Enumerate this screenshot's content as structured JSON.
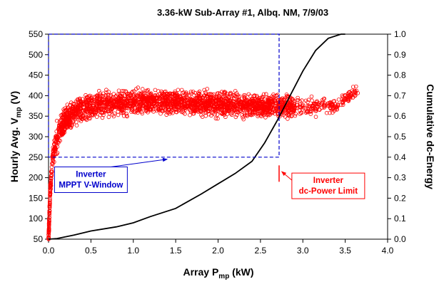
{
  "chart_data": {
    "type": "scatter",
    "title": "3.36-kW  Sub-Array #1, Albq. NM, 7/9/03",
    "xlabel": {
      "main": "Array P",
      "sub": "mp",
      "unit": " (kW)"
    },
    "ylabel": {
      "main": "Hourly Avg. V",
      "sub": "mp",
      "unit": " (V)"
    },
    "y2label": "Cumulative dc-Energy",
    "xlim": [
      0,
      4.0
    ],
    "ylim": [
      50,
      550
    ],
    "y2lim": [
      0,
      1.0
    ],
    "x_ticks": [
      "0.0",
      "0.5",
      "1.0",
      "1.5",
      "2.0",
      "2.5",
      "3.0",
      "3.5",
      "4.0"
    ],
    "y_ticks": [
      "50",
      "100",
      "150",
      "200",
      "250",
      "300",
      "350",
      "400",
      "450",
      "500",
      "550"
    ],
    "y2_ticks": [
      "0.0",
      "0.1",
      "0.2",
      "0.3",
      "0.4",
      "0.5",
      "0.6",
      "0.7",
      "0.8",
      "0.9",
      "1.0"
    ],
    "grid": false,
    "colors": {
      "scatter": "#ff0000",
      "curve": "#000000",
      "window": "#0000cc",
      "limit": "#ff0000"
    },
    "series": [
      {
        "kind": "scatter-band",
        "axis": "left",
        "marker": "open-circle",
        "knee": [
          [
            0.0,
            50
          ],
          [
            0.02,
            170
          ],
          [
            0.05,
            250
          ],
          [
            0.1,
            300
          ],
          [
            0.2,
            340
          ],
          [
            0.35,
            365
          ],
          [
            0.6,
            378
          ],
          [
            1.0,
            385
          ],
          [
            1.5,
            384
          ],
          [
            2.0,
            380
          ],
          [
            2.5,
            375
          ],
          [
            3.0,
            372
          ],
          [
            3.4,
            378
          ],
          [
            3.6,
            408
          ]
        ],
        "spread": [
          [
            0.0,
            8
          ],
          [
            0.1,
            30
          ],
          [
            0.4,
            28
          ],
          [
            1.0,
            26
          ],
          [
            2.0,
            26
          ],
          [
            2.8,
            24
          ],
          [
            3.2,
            18
          ],
          [
            3.6,
            12
          ]
        ]
      },
      {
        "kind": "line",
        "axis": "right",
        "points": [
          [
            0.0,
            0.0
          ],
          [
            0.1,
            0.003
          ],
          [
            0.3,
            0.02
          ],
          [
            0.5,
            0.04
          ],
          [
            0.8,
            0.06
          ],
          [
            1.0,
            0.08
          ],
          [
            1.2,
            0.11
          ],
          [
            1.5,
            0.15
          ],
          [
            1.8,
            0.22
          ],
          [
            2.0,
            0.27
          ],
          [
            2.2,
            0.32
          ],
          [
            2.4,
            0.38
          ],
          [
            2.55,
            0.47
          ],
          [
            2.7,
            0.58
          ],
          [
            2.85,
            0.7
          ],
          [
            3.0,
            0.82
          ],
          [
            3.15,
            0.92
          ],
          [
            3.3,
            0.98
          ],
          [
            3.45,
            1.0
          ],
          [
            3.5,
            1.0
          ]
        ]
      }
    ],
    "window": {
      "x": [
        0.0,
        2.72
      ],
      "y": [
        250,
        550
      ]
    },
    "power_limit_x": 2.72,
    "annotations": [
      {
        "lines": [
          "Inverter",
          "MPPT V-Window"
        ],
        "color": "#0000cc",
        "at": [
          0.5,
          195
        ],
        "arrow_to": [
          1.4,
          245
        ]
      },
      {
        "lines": [
          "Inverter",
          "dc-Power Limit"
        ],
        "color": "#ff0000",
        "at": [
          3.3,
          180
        ],
        "arrow_to": [
          2.75,
          215
        ]
      }
    ]
  }
}
